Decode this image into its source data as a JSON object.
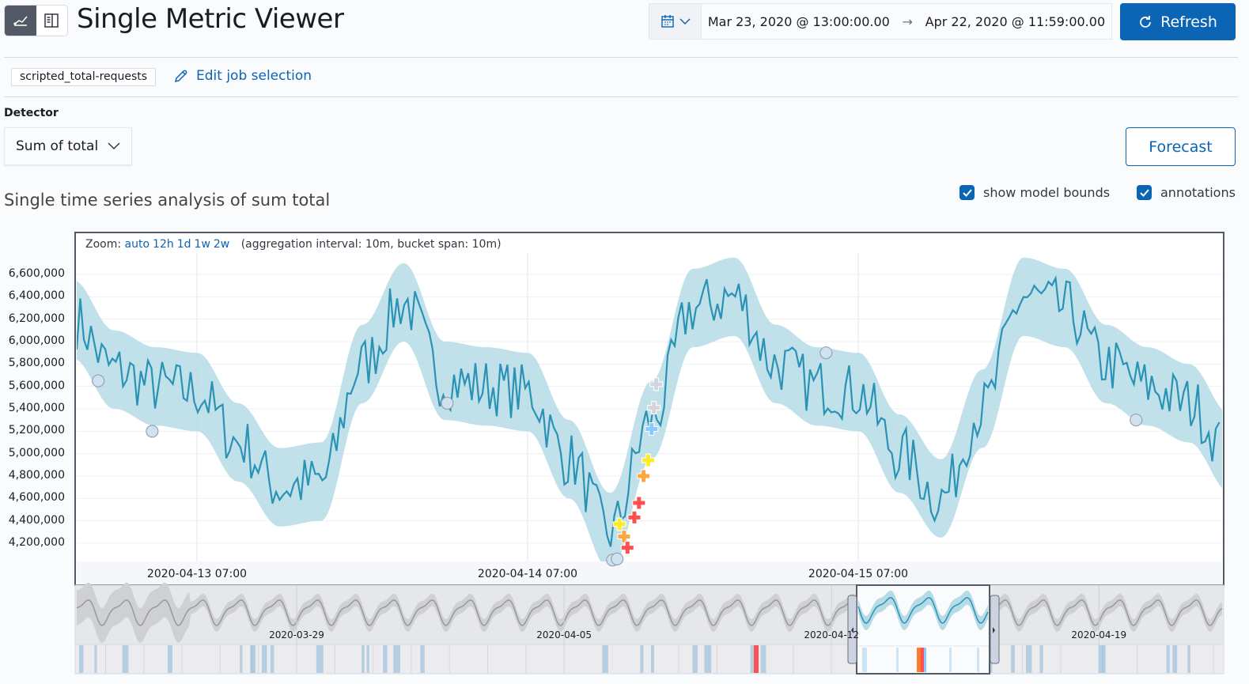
{
  "header": {
    "title": "Single Metric Viewer",
    "view_buttons": [
      {
        "icon": "chart-icon",
        "active": true
      },
      {
        "icon": "table-icon",
        "active": false
      }
    ]
  },
  "time_picker": {
    "start": "Mar 23, 2020 @ 13:00:00.00",
    "arrow": "→",
    "end": "Apr 22, 2020 @ 11:59:00.00"
  },
  "refresh_label": "Refresh",
  "job": {
    "id": "scripted_total-requests",
    "edit_label": "Edit job selection"
  },
  "detector": {
    "label": "Detector",
    "value": "Sum of total"
  },
  "forecast_label": "Forecast",
  "section_title": "Single time series analysis of sum total",
  "checkboxes": [
    {
      "label": "show model bounds",
      "checked": true
    },
    {
      "label": "annotations",
      "checked": true
    }
  ],
  "zoom": {
    "label": "Zoom:",
    "options": [
      "auto",
      "12h",
      "1d",
      "1w",
      "2w"
    ],
    "info": "(aggregation interval: 10m, bucket span: 10m)"
  },
  "colors": {
    "accent": "#0b64b4",
    "line": "#2a93b5",
    "bounds": "#b5dbe6",
    "critical": "#fe5050",
    "major": "#fba740",
    "minor": "#fdec25",
    "warning": "#8bc8fb",
    "low": "#d2d6dc"
  },
  "chart_data": {
    "type": "line",
    "y_ticks": [
      "6,600,000",
      "6,400,000",
      "6,200,000",
      "6,000,000",
      "5,800,000",
      "5,600,000",
      "5,400,000",
      "5,200,000",
      "5,000,000",
      "4,800,000",
      "4,600,000",
      "4,400,000",
      "4,200,000"
    ],
    "x_ticks": [
      "2020-04-13 07:00",
      "2020-04-14 07:00",
      "2020-04-15 07:00"
    ],
    "ylim": [
      4040000,
      6780000
    ],
    "xlim": [
      "2020-04-12 22:10",
      "2020-04-16 09:20"
    ],
    "grid": true,
    "model_bounds_width": 350000,
    "series": {
      "x": [
        "2020-04-12 22:00",
        "2020-04-13 01:00",
        "2020-04-13 04:00",
        "2020-04-13 07:00",
        "2020-04-13 10:00",
        "2020-04-13 13:00",
        "2020-04-13 16:00",
        "2020-04-13 19:00",
        "2020-04-13 22:00",
        "2020-04-14 01:00",
        "2020-04-14 04:00",
        "2020-04-14 07:00",
        "2020-04-14 10:00",
        "2020-04-14 13:00",
        "2020-04-14 16:00",
        "2020-04-14 19:00",
        "2020-04-14 22:00",
        "2020-04-15 01:00",
        "2020-04-15 04:00",
        "2020-04-15 07:00",
        "2020-04-15 10:00",
        "2020-04-15 13:00",
        "2020-04-15 16:00",
        "2020-04-15 19:00",
        "2020-04-15 22:00",
        "2020-04-16 01:00",
        "2020-04-16 04:00",
        "2020-04-16 07:00",
        "2020-04-16 10:00"
      ],
      "y": [
        6200000,
        5750000,
        5600000,
        5550000,
        5100000,
        4700000,
        4750000,
        5800000,
        6350000,
        5650000,
        5600000,
        5550000,
        4950000,
        4300000,
        5300000,
        6300000,
        6400000,
        5800000,
        5600000,
        5550000,
        5000000,
        4600000,
        5400000,
        6400000,
        6300000,
        5800000,
        5600000,
        5450000,
        5000000
      ]
    },
    "anomalies": [
      {
        "time": "2020-04-14 16:20",
        "value": 5620000,
        "severity": "low"
      },
      {
        "time": "2020-04-14 16:10",
        "value": 5410000,
        "severity": "low"
      },
      {
        "time": "2020-04-14 16:00",
        "value": 5220000,
        "severity": "warning"
      },
      {
        "time": "2020-04-14 15:45",
        "value": 4940000,
        "severity": "minor"
      },
      {
        "time": "2020-04-14 15:25",
        "value": 4800000,
        "severity": "major"
      },
      {
        "time": "2020-04-14 15:05",
        "value": 4560000,
        "severity": "critical"
      },
      {
        "time": "2020-04-14 14:45",
        "value": 4430000,
        "severity": "critical"
      },
      {
        "time": "2020-04-14 13:40",
        "value": 4370000,
        "severity": "minor"
      },
      {
        "time": "2020-04-14 14:00",
        "value": 4260000,
        "severity": "major"
      },
      {
        "time": "2020-04-14 14:15",
        "value": 4160000,
        "severity": "critical"
      }
    ],
    "annotations": [
      {
        "time": "2020-04-12 23:50",
        "value": 5650000
      },
      {
        "time": "2020-04-13 03:45",
        "value": 5200000
      },
      {
        "time": "2020-04-14 01:10",
        "value": 5450000
      },
      {
        "time": "2020-04-14 13:10",
        "value": 4050000
      },
      {
        "time": "2020-04-14 13:30",
        "value": 4060000
      },
      {
        "time": "2020-04-15 04:40",
        "value": 5900000
      },
      {
        "time": "2020-04-16 03:10",
        "value": 5300000
      }
    ]
  },
  "context_chart": {
    "x_ticks": [
      "2020-03-29",
      "2020-04-05",
      "2020-04-12",
      "2020-04-19"
    ],
    "selection": [
      "2020-04-12 22:10",
      "2020-04-16 09:20"
    ]
  }
}
